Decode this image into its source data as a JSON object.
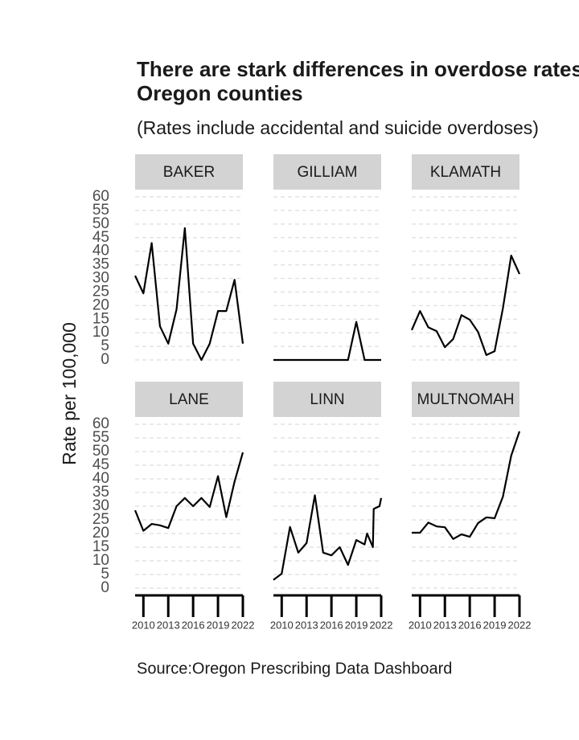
{
  "chart_data": {
    "type": "line",
    "title": [
      "There are stark differences in overdose rates across",
      "Oregon counties"
    ],
    "subtitle": "(Rates include accidental and suicide overdoses)",
    "y_label": "Rate per 100,000",
    "caption": "Source:Oregon Prescribing Data Dashboard",
    "color": "#000000",
    "grid": true,
    "xlim": [
      2009,
      2022
    ],
    "xticks": [
      2010,
      2013,
      2016,
      2019,
      2022
    ],
    "ylim": [
      0,
      60
    ],
    "yticks": [
      0,
      5,
      10,
      15,
      20,
      25,
      30,
      35,
      40,
      45,
      50,
      55,
      60
    ],
    "facets": [
      {
        "name": "BAKER",
        "x": [
          2009,
          2010,
          2011,
          2012,
          2013,
          2014,
          2015,
          2016,
          2017,
          2018,
          2019,
          2020,
          2021,
          2022
        ],
        "values": [
          31,
          24.5,
          43,
          12.4,
          6,
          18.6,
          48.5,
          6,
          0,
          6,
          18,
          18,
          29.5,
          6
        ]
      },
      {
        "name": "GILLIAM",
        "x": [
          2009,
          2010,
          2011,
          2012,
          2013,
          2014,
          2015,
          2016,
          2017,
          2018,
          2019,
          2020,
          2021,
          2022
        ],
        "values": [
          0,
          0,
          0,
          0,
          0,
          0,
          0,
          0,
          0,
          0,
          14,
          0,
          0,
          0
        ]
      },
      {
        "name": "KLAMATH",
        "x": [
          2009,
          2010,
          2011,
          2012,
          2013,
          2014,
          2015,
          2016,
          2017,
          2018,
          2019,
          2020,
          2021,
          2022
        ],
        "values": [
          11,
          18,
          12,
          10.6,
          4.7,
          7.7,
          16.5,
          14.8,
          10.3,
          1.8,
          3.2,
          19,
          38.4,
          31.6
        ]
      },
      {
        "name": "LANE",
        "x": [
          2009,
          2010,
          2011,
          2012,
          2013,
          2014,
          2015,
          2016,
          2017,
          2018,
          2019,
          2020,
          2021,
          2022
        ],
        "values": [
          28.5,
          21,
          23.5,
          23,
          22,
          30,
          33,
          30,
          33,
          29.7,
          41,
          26,
          39,
          49.7
        ]
      },
      {
        "name": "LINN",
        "x": [
          2009,
          2010,
          2011,
          2012,
          2013,
          2014,
          2015,
          2016,
          2017,
          2018,
          2019,
          2020,
          2020.3,
          2021,
          2021.1,
          2021.8,
          2022
        ],
        "values": [
          3,
          5.3,
          22.4,
          13,
          16.5,
          34,
          13,
          12,
          15,
          8.5,
          17.6,
          16,
          20,
          15,
          29,
          30,
          33
        ]
      },
      {
        "name": "MULTNOMAH",
        "x": [
          2009,
          2010,
          2011,
          2012,
          2013,
          2014,
          2015,
          2016,
          2017,
          2018,
          2019,
          2020,
          2021,
          2022
        ],
        "values": [
          20.3,
          20.3,
          24,
          22.6,
          22.3,
          18,
          19.7,
          18.8,
          23.8,
          25.9,
          25.6,
          33.5,
          48.5,
          57.4
        ]
      }
    ]
  }
}
